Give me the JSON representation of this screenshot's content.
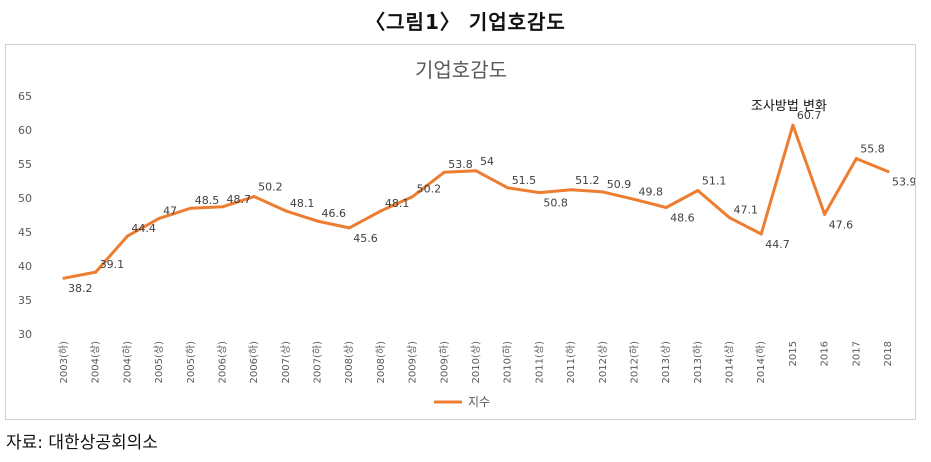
{
  "figure_title": "〈그림1〉 기업호감도",
  "source_note": "자료:  대한상공회의소",
  "chart_data": {
    "type": "line",
    "title": "기업호감도",
    "xlabel": "",
    "ylabel": "",
    "ylim": [
      30,
      65
    ],
    "yticks": [
      30,
      35,
      40,
      45,
      50,
      55,
      60,
      65
    ],
    "grid": false,
    "legend_position": "bottom",
    "categories": [
      "2003(하)",
      "2004(상)",
      "2004(하)",
      "2005(상)",
      "2005(하)",
      "2006(상)",
      "2006(하)",
      "2007(상)",
      "2007(하)",
      "2008(상)",
      "2008(하)",
      "2009(상)",
      "2009(하)",
      "2010(상)",
      "2010(하)",
      "2011(상)",
      "2011(하)",
      "2012(상)",
      "2012(하)",
      "2013(상)",
      "2013(하)",
      "2014(상)",
      "2014(하)",
      "2015",
      "2016",
      "2017",
      "2018"
    ],
    "series": [
      {
        "name": "지수",
        "color": "#ED7D31",
        "values": [
          38.2,
          39.1,
          44.4,
          47,
          48.5,
          48.7,
          50.2,
          48.1,
          46.6,
          45.6,
          48.1,
          50.2,
          53.8,
          54,
          51.5,
          50.8,
          51.2,
          50.9,
          49.8,
          48.6,
          51.1,
          47.1,
          44.7,
          60.7,
          47.6,
          55.8,
          53.9
        ]
      }
    ],
    "annotations": [
      {
        "text": "조사방법 변화",
        "category": "2015"
      }
    ]
  }
}
